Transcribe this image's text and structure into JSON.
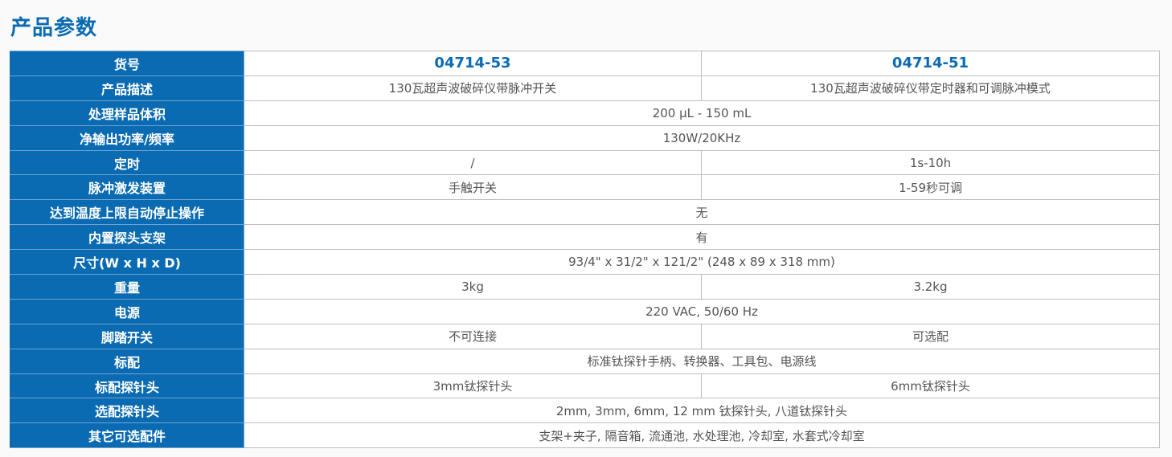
{
  "title": "产品参数",
  "header": {
    "label": "货号",
    "col1": "04714-53",
    "col2": "04714-51"
  },
  "rows": [
    {
      "label": "产品描述",
      "col1": "130瓦超声波破碎仪带脉冲开关",
      "col2": "130瓦超声波破碎仪带定时器和可调脉冲模式"
    },
    {
      "label": "处理样品体积",
      "value": "200 µL - 150 mL"
    },
    {
      "label": "净输出功率/频率",
      "value": "130W/20KHz"
    },
    {
      "label": "定时",
      "col1": "/",
      "col2": "1s-10h"
    },
    {
      "label": "脉冲激发装置",
      "col1": "手触开关",
      "col2": "1-59秒可调"
    },
    {
      "label": "达到温度上限自动停止操作",
      "value": "无"
    },
    {
      "label": "内置探头支架",
      "value": "有"
    },
    {
      "label": "尺寸(W x H x D)",
      "value": "93/4\" x 31/2\" x 121/2\" (248 x 89 x 318 mm)"
    },
    {
      "label": "重量",
      "col1": "3kg",
      "col2": "3.2kg"
    },
    {
      "label": "电源",
      "value": "220 VAC, 50/60 Hz"
    },
    {
      "label": "脚踏开关",
      "col1": "不可连接",
      "col2": "可选配"
    },
    {
      "label": "标配",
      "value": "标准钛探针手柄、转换器、工具包、电源线"
    },
    {
      "label": "标配探针头",
      "col1": "3mm钛探针头",
      "col2": "6mm钛探针头"
    },
    {
      "label": "选配探针头",
      "value": "2mm, 3mm, 6mm, 12 mm 钛探针头, 八道钛探针头"
    },
    {
      "label": "其它可选配件",
      "value": "支架+夹子, 隔音箱, 流通池, 水处理池, 冷却室, 水套式冷却室"
    }
  ]
}
